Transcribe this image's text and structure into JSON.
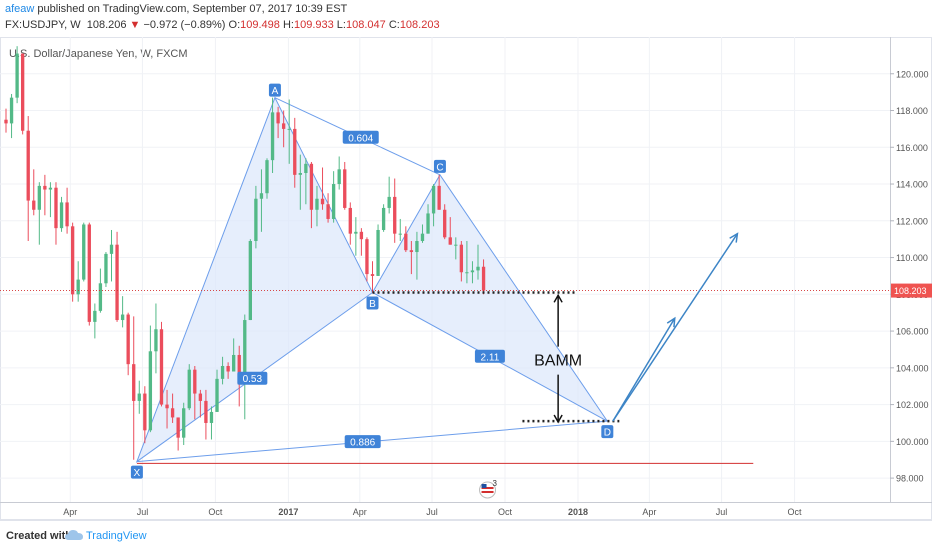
{
  "header": {
    "author": "afeaw",
    "published_text": "published on TradingView.com, September 07, 2017 10:39 EST",
    "symbol": "FX:USDJPY, W",
    "last": "108.206",
    "change_arrow": "▼",
    "change": "−0.972 (−0.89%)",
    "o_label": "O:",
    "o_value": "109.498",
    "h_label": "H:",
    "h_value": "109.933",
    "l_label": "L:",
    "l_value": "108.047",
    "c_label": "C:",
    "c_value": "108.203"
  },
  "footer": {
    "created_with": "Created with",
    "brand": "TradingView",
    "logo_icon": "tradingview-cloud-icon"
  },
  "chart_data": {
    "type": "candlestick",
    "title": "U.S. Dollar/Japanese Yen, W, FXCM",
    "ylim": [
      96.7,
      122.0
    ],
    "y_ticks": [
      "98.000",
      "100.000",
      "102.000",
      "104.000",
      "106.000",
      "108.000",
      "110.000",
      "112.000",
      "114.000",
      "116.000",
      "118.000",
      "120.000"
    ],
    "x_ticks": [
      "Apr",
      "Jul",
      "Oct",
      "2017",
      "Apr",
      "Jul",
      "Oct",
      "2018",
      "Apr",
      "Jul",
      "Oct"
    ],
    "x_tick_dates": [
      "2016-04-01",
      "2016-07-01",
      "2016-10-01",
      "2017-01-01",
      "2017-04-01",
      "2017-07-01",
      "2017-10-01",
      "2018-01-01",
      "2018-04-01",
      "2018-07-01",
      "2018-10-01"
    ],
    "x_range": [
      "2016-01-11",
      "2018-12-20"
    ],
    "last_price_label": "108.203",
    "colors": {
      "up": "#53b987",
      "down": "#eb4d5c",
      "pattern_line": "#6d9eeb",
      "pattern_fill": "#dbe7fb",
      "label_bg": "#3f83d8",
      "arrow": "#3d85c6",
      "price_line": "#d32f2f",
      "support_line": "#d32f2f"
    },
    "candles": [
      {
        "t": "2016-01-11",
        "o": 117.5,
        "h": 118.1,
        "l": 116.8,
        "c": 117.3
      },
      {
        "t": "2016-01-18",
        "o": 117.3,
        "h": 118.9,
        "l": 116.5,
        "c": 118.7
      },
      {
        "t": "2016-01-25",
        "o": 118.7,
        "h": 121.5,
        "l": 118.4,
        "c": 121.1
      },
      {
        "t": "2016-02-01",
        "o": 121.1,
        "h": 121.0,
        "l": 116.7,
        "c": 116.9
      },
      {
        "t": "2016-02-08",
        "o": 116.9,
        "h": 117.7,
        "l": 110.9,
        "c": 113.1
      },
      {
        "t": "2016-02-15",
        "o": 113.1,
        "h": 114.8,
        "l": 112.3,
        "c": 112.6
      },
      {
        "t": "2016-02-22",
        "o": 112.6,
        "h": 114.1,
        "l": 110.7,
        "c": 113.9
      },
      {
        "t": "2016-02-29",
        "o": 113.9,
        "h": 114.5,
        "l": 112.3,
        "c": 113.7
      },
      {
        "t": "2016-03-07",
        "o": 113.7,
        "h": 114.1,
        "l": 112.2,
        "c": 113.8
      },
      {
        "t": "2016-03-14",
        "o": 113.8,
        "h": 114.1,
        "l": 110.7,
        "c": 111.6
      },
      {
        "t": "2016-03-21",
        "o": 111.6,
        "h": 113.3,
        "l": 111.4,
        "c": 113.0
      },
      {
        "t": "2016-03-28",
        "o": 113.0,
        "h": 113.8,
        "l": 111.3,
        "c": 111.7
      },
      {
        "t": "2016-04-04",
        "o": 111.7,
        "h": 111.9,
        "l": 107.6,
        "c": 108.0
      },
      {
        "t": "2016-04-11",
        "o": 108.0,
        "h": 109.8,
        "l": 107.6,
        "c": 108.8
      },
      {
        "t": "2016-04-18",
        "o": 108.8,
        "h": 111.9,
        "l": 108.7,
        "c": 111.8
      },
      {
        "t": "2016-04-25",
        "o": 111.8,
        "h": 111.9,
        "l": 106.3,
        "c": 106.5
      },
      {
        "t": "2016-05-02",
        "o": 106.5,
        "h": 107.5,
        "l": 105.6,
        "c": 107.1
      },
      {
        "t": "2016-05-09",
        "o": 107.1,
        "h": 109.4,
        "l": 107.0,
        "c": 108.6
      },
      {
        "t": "2016-05-16",
        "o": 108.6,
        "h": 110.3,
        "l": 108.4,
        "c": 110.2
      },
      {
        "t": "2016-05-23",
        "o": 110.2,
        "h": 111.5,
        "l": 108.7,
        "c": 110.7
      },
      {
        "t": "2016-05-30",
        "o": 110.7,
        "h": 111.4,
        "l": 106.5,
        "c": 106.6
      },
      {
        "t": "2016-06-06",
        "o": 106.6,
        "h": 107.9,
        "l": 106.2,
        "c": 106.9
      },
      {
        "t": "2016-06-13",
        "o": 106.9,
        "h": 107.0,
        "l": 103.6,
        "c": 104.2
      },
      {
        "t": "2016-06-20",
        "o": 104.2,
        "h": 106.8,
        "l": 99.0,
        "c": 102.2
      },
      {
        "t": "2016-06-27",
        "o": 102.2,
        "h": 103.3,
        "l": 101.5,
        "c": 102.6
      },
      {
        "t": "2016-07-04",
        "o": 102.6,
        "h": 103.0,
        "l": 99.9,
        "c": 100.6
      },
      {
        "t": "2016-07-11",
        "o": 100.6,
        "h": 106.3,
        "l": 100.5,
        "c": 104.9
      },
      {
        "t": "2016-07-18",
        "o": 104.9,
        "h": 107.5,
        "l": 103.7,
        "c": 106.1
      },
      {
        "t": "2016-07-25",
        "o": 106.1,
        "h": 106.5,
        "l": 101.9,
        "c": 102.0
      },
      {
        "t": "2016-08-01",
        "o": 102.0,
        "h": 102.8,
        "l": 100.7,
        "c": 101.8
      },
      {
        "t": "2016-08-08",
        "o": 101.8,
        "h": 102.6,
        "l": 101.0,
        "c": 101.3
      },
      {
        "t": "2016-08-15",
        "o": 101.3,
        "h": 101.3,
        "l": 99.5,
        "c": 100.2
      },
      {
        "t": "2016-08-22",
        "o": 100.2,
        "h": 102.1,
        "l": 99.8,
        "c": 101.8
      },
      {
        "t": "2016-08-29",
        "o": 101.8,
        "h": 104.2,
        "l": 101.7,
        "c": 103.9
      },
      {
        "t": "2016-09-05",
        "o": 103.9,
        "h": 104.1,
        "l": 101.2,
        "c": 102.6
      },
      {
        "t": "2016-09-12",
        "o": 102.6,
        "h": 102.8,
        "l": 101.3,
        "c": 102.2
      },
      {
        "t": "2016-09-19",
        "o": 102.2,
        "h": 102.8,
        "l": 100.1,
        "c": 101.0
      },
      {
        "t": "2016-09-26",
        "o": 101.0,
        "h": 101.9,
        "l": 100.1,
        "c": 101.6
      },
      {
        "t": "2016-10-03",
        "o": 101.6,
        "h": 103.9,
        "l": 101.6,
        "c": 103.4
      },
      {
        "t": "2016-10-10",
        "o": 103.4,
        "h": 104.6,
        "l": 103.1,
        "c": 104.1
      },
      {
        "t": "2016-10-17",
        "o": 104.1,
        "h": 104.3,
        "l": 103.4,
        "c": 103.8
      },
      {
        "t": "2016-10-24",
        "o": 103.8,
        "h": 105.6,
        "l": 103.8,
        "c": 104.7
      },
      {
        "t": "2016-10-31",
        "o": 104.7,
        "h": 105.2,
        "l": 101.9,
        "c": 103.1
      },
      {
        "t": "2016-11-07",
        "o": 103.1,
        "h": 106.9,
        "l": 101.2,
        "c": 106.6
      },
      {
        "t": "2016-11-14",
        "o": 106.6,
        "h": 111.0,
        "l": 106.6,
        "c": 110.9
      },
      {
        "t": "2016-11-21",
        "o": 110.9,
        "h": 113.9,
        "l": 110.5,
        "c": 113.2
      },
      {
        "t": "2016-11-28",
        "o": 113.2,
        "h": 114.8,
        "l": 111.4,
        "c": 113.5
      },
      {
        "t": "2016-12-05",
        "o": 113.5,
        "h": 115.4,
        "l": 113.2,
        "c": 115.3
      },
      {
        "t": "2016-12-12",
        "o": 115.3,
        "h": 118.7,
        "l": 114.6,
        "c": 117.9
      },
      {
        "t": "2016-12-19",
        "o": 117.9,
        "h": 118.2,
        "l": 116.5,
        "c": 117.3
      },
      {
        "t": "2016-12-26",
        "o": 117.3,
        "h": 118.0,
        "l": 116.0,
        "c": 117.0
      },
      {
        "t": "2017-01-02",
        "o": 117.0,
        "h": 118.6,
        "l": 115.1,
        "c": 117.0
      },
      {
        "t": "2017-01-09",
        "o": 117.0,
        "h": 117.6,
        "l": 113.8,
        "c": 114.5
      },
      {
        "t": "2017-01-16",
        "o": 114.5,
        "h": 115.6,
        "l": 112.6,
        "c": 114.6
      },
      {
        "t": "2017-01-23",
        "o": 114.6,
        "h": 115.4,
        "l": 112.9,
        "c": 115.1
      },
      {
        "t": "2017-01-30",
        "o": 115.1,
        "h": 115.2,
        "l": 111.6,
        "c": 112.6
      },
      {
        "t": "2017-02-06",
        "o": 112.6,
        "h": 113.9,
        "l": 111.7,
        "c": 113.2
      },
      {
        "t": "2017-02-13",
        "o": 113.2,
        "h": 114.9,
        "l": 112.6,
        "c": 112.9
      },
      {
        "t": "2017-02-20",
        "o": 112.9,
        "h": 113.5,
        "l": 111.9,
        "c": 112.1
      },
      {
        "t": "2017-02-27",
        "o": 112.1,
        "h": 114.7,
        "l": 111.9,
        "c": 114.0
      },
      {
        "t": "2017-03-06",
        "o": 114.0,
        "h": 115.5,
        "l": 113.7,
        "c": 114.8
      },
      {
        "t": "2017-03-13",
        "o": 114.8,
        "h": 115.2,
        "l": 112.6,
        "c": 112.7
      },
      {
        "t": "2017-03-20",
        "o": 112.7,
        "h": 113.0,
        "l": 110.7,
        "c": 111.3
      },
      {
        "t": "2017-03-27",
        "o": 111.3,
        "h": 112.2,
        "l": 110.1,
        "c": 111.4
      },
      {
        "t": "2017-04-03",
        "o": 111.4,
        "h": 111.6,
        "l": 110.1,
        "c": 111.0
      },
      {
        "t": "2017-04-10",
        "o": 111.0,
        "h": 111.1,
        "l": 108.7,
        "c": 109.1
      },
      {
        "t": "2017-04-17",
        "o": 109.1,
        "h": 109.8,
        "l": 108.1,
        "c": 109.0
      },
      {
        "t": "2017-04-24",
        "o": 109.0,
        "h": 111.8,
        "l": 109.0,
        "c": 111.5
      },
      {
        "t": "2017-05-01",
        "o": 111.5,
        "h": 112.9,
        "l": 111.4,
        "c": 112.7
      },
      {
        "t": "2017-05-08",
        "o": 112.7,
        "h": 114.4,
        "l": 112.4,
        "c": 113.3
      },
      {
        "t": "2017-05-15",
        "o": 113.3,
        "h": 114.3,
        "l": 110.8,
        "c": 111.3
      },
      {
        "t": "2017-05-22",
        "o": 111.3,
        "h": 112.1,
        "l": 110.9,
        "c": 111.3
      },
      {
        "t": "2017-05-29",
        "o": 111.3,
        "h": 111.7,
        "l": 110.3,
        "c": 110.4
      },
      {
        "t": "2017-06-05",
        "o": 110.4,
        "h": 110.9,
        "l": 109.1,
        "c": 110.3
      },
      {
        "t": "2017-06-12",
        "o": 110.3,
        "h": 111.4,
        "l": 108.8,
        "c": 110.9
      },
      {
        "t": "2017-06-19",
        "o": 110.9,
        "h": 111.8,
        "l": 110.8,
        "c": 111.3
      },
      {
        "t": "2017-06-26",
        "o": 111.3,
        "h": 112.9,
        "l": 111.3,
        "c": 112.4
      },
      {
        "t": "2017-07-03",
        "o": 112.4,
        "h": 114.0,
        "l": 111.7,
        "c": 113.9
      },
      {
        "t": "2017-07-10",
        "o": 113.9,
        "h": 114.5,
        "l": 112.6,
        "c": 112.6
      },
      {
        "t": "2017-07-17",
        "o": 112.6,
        "h": 112.9,
        "l": 111.0,
        "c": 111.1
      },
      {
        "t": "2017-07-24",
        "o": 111.1,
        "h": 112.2,
        "l": 110.7,
        "c": 110.7
      },
      {
        "t": "2017-07-31",
        "o": 110.7,
        "h": 111.1,
        "l": 109.9,
        "c": 110.7
      },
      {
        "t": "2017-08-07",
        "o": 110.7,
        "h": 110.9,
        "l": 108.7,
        "c": 109.2
      },
      {
        "t": "2017-08-14",
        "o": 109.2,
        "h": 110.9,
        "l": 108.6,
        "c": 109.2
      },
      {
        "t": "2017-08-21",
        "o": 109.2,
        "h": 109.8,
        "l": 108.6,
        "c": 109.3
      },
      {
        "t": "2017-08-28",
        "o": 109.3,
        "h": 110.7,
        "l": 108.8,
        "c": 109.5
      },
      {
        "t": "2017-09-04",
        "o": 109.5,
        "h": 109.9,
        "l": 108.0,
        "c": 108.2
      }
    ],
    "harmonic_pattern": {
      "points": [
        {
          "label": "X",
          "t": "2016-06-24",
          "y": 98.9
        },
        {
          "label": "A",
          "t": "2016-12-15",
          "y": 118.7
        },
        {
          "label": "B",
          "t": "2017-04-17",
          "y": 108.1
        },
        {
          "label": "C",
          "t": "2017-07-11",
          "y": 114.5
        },
        {
          "label": "D",
          "t": "2018-02-07",
          "y": 101.1
        }
      ],
      "ratios": [
        {
          "label": "0.604",
          "on": "AC"
        },
        {
          "label": "0.53",
          "on": "XB"
        },
        {
          "label": "2.11",
          "on": "BD"
        },
        {
          "label": "0.886",
          "on": "XD"
        }
      ]
    },
    "annotations": {
      "bamm_label": "BAMM",
      "b_level": 108.1,
      "d_level": 101.1,
      "b_dotted_end": "2017-12-31",
      "d_dotted_start": "2017-10-23",
      "support_level": 98.8,
      "support_end": "2018-08-10",
      "projection_arrows": [
        {
          "from": {
            "t": "2018-02-14",
            "y": 101.1
          },
          "to": {
            "t": "2018-05-03",
            "y": 106.7
          }
        },
        {
          "from": {
            "t": "2018-02-14",
            "y": 101.1
          },
          "to": {
            "t": "2018-07-21",
            "y": 111.3
          }
        }
      ],
      "bamm_arrow_t": "2017-12-07",
      "bamm_arrow_top": 108.0,
      "bamm_arrow_bottom": 101.0,
      "dividend_marker_t": "2017-09-09",
      "dividend_marker_text": "3",
      "dividend_marker_icon": "us-flag-icon"
    }
  }
}
